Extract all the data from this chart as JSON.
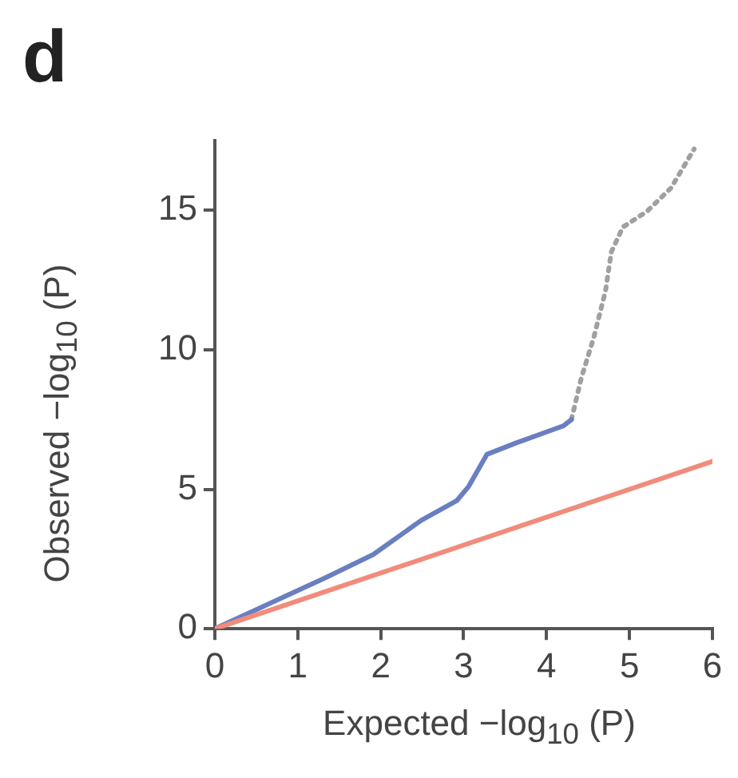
{
  "chart_data": {
    "type": "line",
    "title": "d",
    "xlabel": "Expected −log$_{10}$ (P)",
    "ylabel": "Observed −log$_{10}$ (P)",
    "xlim": [
      0,
      6
    ],
    "ylim": [
      0,
      17.5
    ],
    "xticks": [
      0,
      1,
      2,
      3,
      4,
      5,
      6
    ],
    "yticks": [
      0,
      5,
      10,
      15
    ],
    "grid": false,
    "legend": false,
    "marker": "none",
    "series": [
      {
        "color": "#f08c7c",
        "x": [
          0,
          6
        ],
        "values": [
          0,
          6
        ]
      },
      {
        "color": "#6a7fc0",
        "x": [
          0,
          1.34,
          1.91,
          2.49,
          2.92,
          3.06,
          3.28,
          3.63,
          4.2,
          4.3
        ],
        "values": [
          0,
          1.84,
          2.66,
          3.89,
          4.6,
          5.1,
          6.25,
          6.66,
          7.27,
          7.5
        ]
      },
      {
        "color": "#a0a0a0",
        "line_style": "dotted",
        "x": [
          4.3,
          4.42,
          4.57,
          4.71,
          4.78,
          4.92,
          5.21,
          5.5,
          5.78
        ],
        "values": [
          7.5,
          9.0,
          10.45,
          12.1,
          13.5,
          14.4,
          14.96,
          15.8,
          17.2
        ]
      }
    ]
  }
}
